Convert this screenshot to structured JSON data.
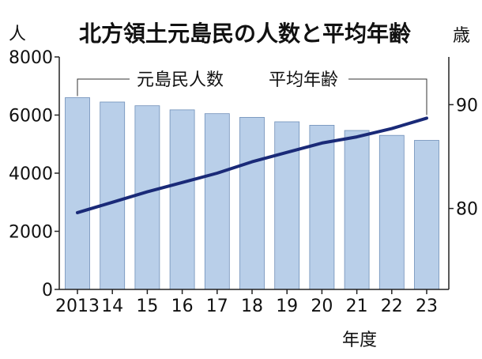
{
  "chart_data": {
    "type": "bar",
    "title": "北方領土元島民の人数と平均年齢",
    "xlabel": "年度",
    "categories": [
      "2013",
      "14",
      "15",
      "16",
      "17",
      "18",
      "19",
      "20",
      "21",
      "22",
      "23"
    ],
    "series": [
      {
        "name": "元島民人数",
        "type": "bar",
        "axis": "left",
        "unit": "人",
        "values": [
          6600,
          6450,
          6320,
          6180,
          6050,
          5920,
          5770,
          5650,
          5470,
          5300,
          5130
        ]
      },
      {
        "name": "平均年齢",
        "type": "line",
        "axis": "right",
        "unit": "歳",
        "values": [
          79.6,
          80.6,
          81.6,
          82.5,
          83.4,
          84.5,
          85.4,
          86.3,
          86.9,
          87.7,
          88.7
        ]
      }
    ],
    "left_axis": {
      "unit": "人",
      "ylim": [
        0,
        8000
      ],
      "ticks": [
        "0",
        "2000",
        "4000",
        "6000",
        "8000"
      ]
    },
    "right_axis": {
      "unit": "歳",
      "ylim": [
        72.2,
        94.6
      ],
      "ticks": [
        "80",
        "90"
      ]
    },
    "grid": false,
    "colors": {
      "bar_fill": "#b9cfe9",
      "bar_stroke": "#6f8fb8",
      "line": "#1a2a78",
      "axis": "#222222"
    }
  }
}
